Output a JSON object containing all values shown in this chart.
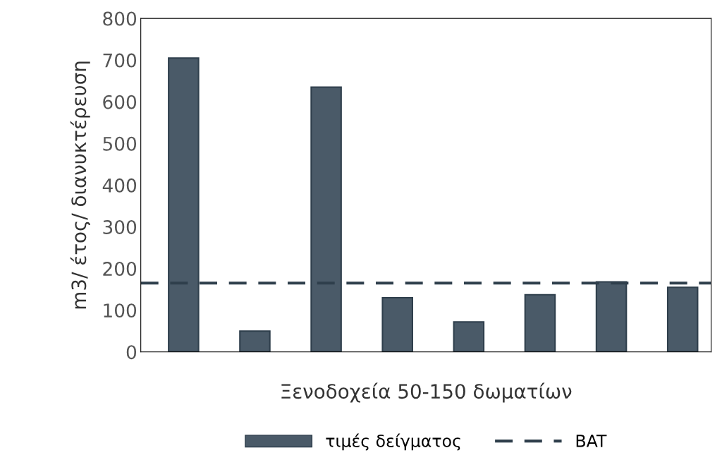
{
  "chart_data": {
    "type": "bar",
    "xlabel": "Ξενοδοχεία 50-150 δωματίων",
    "ylabel": "m3/ έτος/ διανυκτέρευση",
    "categories": [
      null,
      null,
      null,
      null,
      null,
      null,
      null,
      null
    ],
    "series": [
      {
        "name": "τιμές δείγματος",
        "color": "#4a5a68",
        "values": [
          705,
          50,
          635,
          130,
          72,
          137,
          168,
          155
        ]
      }
    ],
    "ref_lines": [
      {
        "axis": "y",
        "value": 165,
        "label": "BAT",
        "color": "#2f3f4c",
        "line_style": "dashed"
      }
    ],
    "ylim": [
      0,
      800
    ],
    "yticks": [
      0,
      100,
      200,
      300,
      400,
      500,
      600,
      700,
      800
    ],
    "grid": false,
    "legend": "bottom"
  }
}
